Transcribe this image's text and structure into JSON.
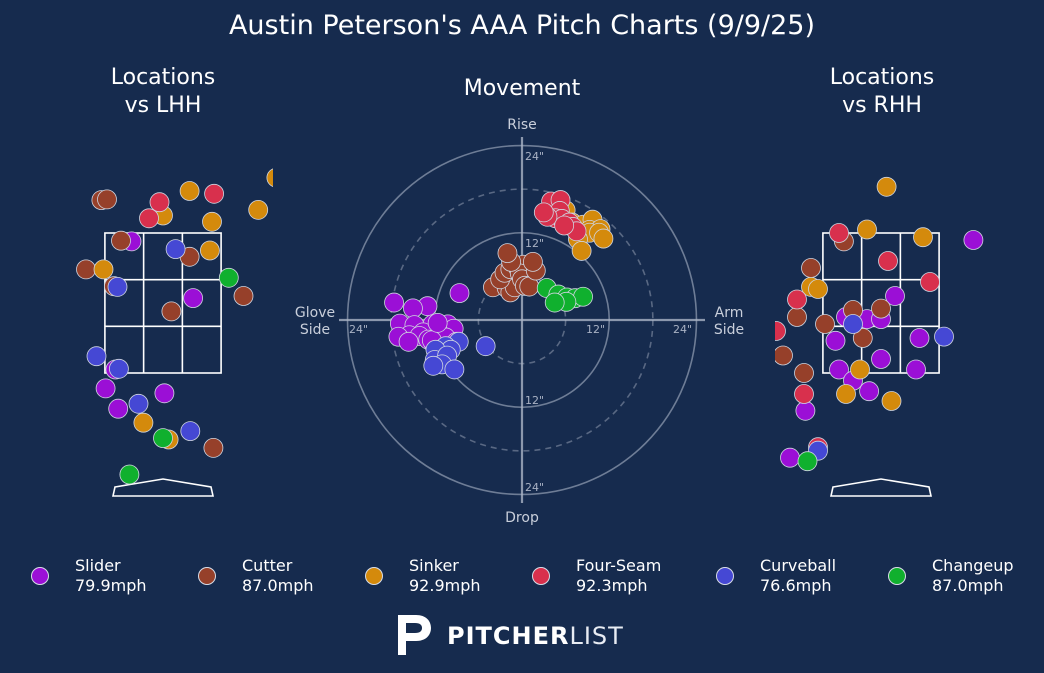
{
  "title": "Austin Peterson's AAA Pitch Charts (9/9/25)",
  "panels": {
    "lhh": {
      "line1": "Locations",
      "line2": "vs LHH"
    },
    "movement": {
      "title": "Movement"
    },
    "rhh": {
      "line1": "Locations",
      "line2": "vs RHH"
    }
  },
  "movement_axis_labels": {
    "top": "Rise",
    "bottom": "Drop",
    "left_line1": "Glove",
    "left_line2": "Side",
    "right_line1": "Arm",
    "right_line2": "Side"
  },
  "movement_ring_labels": {
    "top_24": "24\"",
    "top_12": "12\"",
    "bottom_12": "12\"",
    "bottom_24": "24\"",
    "left_24": "24\"",
    "right_12": "12\"",
    "right_24": "24\""
  },
  "colors": {
    "background": "#162b4e",
    "Slider": "#9b0fd6",
    "Cutter": "#96402a",
    "Sinker": "#d48a0c",
    "Four-Seam": "#d8304d",
    "Curveball": "#4548d4",
    "Changeup": "#10b02e"
  },
  "legend": [
    {
      "name": "Slider",
      "speed": "79.9mph"
    },
    {
      "name": "Cutter",
      "speed": "87.0mph"
    },
    {
      "name": "Sinker",
      "speed": "92.9mph"
    },
    {
      "name": "Four-Seam",
      "speed": "92.3mph"
    },
    {
      "name": "Curveball",
      "speed": "76.6mph"
    },
    {
      "name": "Changeup",
      "speed": "87.0mph"
    }
  ],
  "logo": {
    "bold": "PITCHER",
    "light": "LIST"
  },
  "chart_data": [
    {
      "type": "scatter",
      "title": "Locations vs LHH",
      "x_unit": "ft from plate center",
      "y_unit": "ft above ground",
      "series": [
        {
          "name": "Slider",
          "points": [
            [
              -0.45,
              3.38
            ],
            [
              0.43,
              2.57
            ],
            [
              -0.82,
              1.28
            ],
            [
              -0.68,
              1.55
            ],
            [
              0.02,
              1.21
            ],
            [
              -0.64,
              0.99
            ]
          ]
        },
        {
          "name": "Cutter",
          "points": [
            [
              -0.88,
              3.97
            ],
            [
              -0.8,
              3.98
            ],
            [
              -0.6,
              3.39
            ],
            [
              -1.1,
              2.98
            ],
            [
              -0.7,
              2.74
            ],
            [
              0.38,
              3.16
            ],
            [
              0.12,
              2.38
            ],
            [
              1.15,
              2.6
            ],
            [
              0.72,
              0.43
            ]
          ]
        },
        {
          "name": "Sinker",
          "points": [
            [
              0.38,
              4.1
            ],
            [
              0.0,
              3.75
            ],
            [
              0.7,
              3.66
            ],
            [
              0.67,
              3.25
            ],
            [
              -0.85,
              2.98
            ],
            [
              1.36,
              3.83
            ],
            [
              1.62,
              4.29
            ],
            [
              -0.28,
              0.79
            ],
            [
              0.08,
              0.55
            ]
          ]
        },
        {
          "name": "Four-Seam",
          "points": [
            [
              -0.05,
              3.94
            ],
            [
              0.73,
              4.06
            ],
            [
              -0.2,
              3.71
            ]
          ]
        },
        {
          "name": "Curveball",
          "points": [
            [
              -0.65,
              2.73
            ],
            [
              0.18,
              3.27
            ],
            [
              -0.95,
              1.74
            ],
            [
              -0.63,
              1.56
            ],
            [
              -0.35,
              1.06
            ],
            [
              0.39,
              0.67
            ],
            [
              -1.8,
              -1.16
            ]
          ]
        },
        {
          "name": "Changeup",
          "points": [
            [
              0.94,
              2.86
            ],
            [
              0.0,
              0.57
            ],
            [
              -0.48,
              0.05
            ],
            [
              0.75,
              -1.39
            ]
          ]
        }
      ]
    },
    {
      "type": "scatter",
      "title": "Movement",
      "x_unit": "inches",
      "y_unit": "inches",
      "x_axis": "Glove Side (-) / Arm Side (+)",
      "y_axis": "Drop (-) / Rise (+)",
      "rings": [
        12,
        24
      ],
      "series": [
        {
          "name": "Slider",
          "points": [
            [
              -8.6,
              3.7
            ],
            [
              -13.0,
              1.9
            ],
            [
              -15.0,
              1.6
            ],
            [
              -17.6,
              2.4
            ],
            [
              -16.8,
              -0.5
            ],
            [
              -14.8,
              -0.7
            ],
            [
              -12.3,
              -0.6
            ],
            [
              -10.8,
              -1.0
            ],
            [
              -10.2,
              -0.6
            ],
            [
              -9.4,
              -1.2
            ],
            [
              -11.6,
              -1.5
            ],
            [
              -13.6,
              -1.7
            ],
            [
              -15.5,
              -2.1
            ],
            [
              -17.0,
              -2.3
            ],
            [
              -14.1,
              -2.2
            ],
            [
              -12.9,
              -2.7
            ],
            [
              -10.5,
              -2.4
            ],
            [
              -12.1,
              -3.4
            ],
            [
              -12.4,
              -2.8
            ],
            [
              -15.6,
              -3.0
            ],
            [
              -11.6,
              -0.4
            ],
            [
              -9.0,
              -3.0
            ]
          ]
        },
        {
          "name": "Cutter",
          "points": [
            [
              -4.0,
              4.5
            ],
            [
              -2.1,
              4.4
            ],
            [
              -1.6,
              3.8
            ],
            [
              -1.0,
              4.5
            ],
            [
              -3.0,
              5.6
            ],
            [
              -2.4,
              6.5
            ],
            [
              -1.6,
              7.0
            ],
            [
              -0.5,
              7.1
            ],
            [
              0.2,
              7.6
            ],
            [
              -0.3,
              6.4
            ],
            [
              0.0,
              5.6
            ],
            [
              0.4,
              4.7
            ],
            [
              1.0,
              4.6
            ],
            [
              1.9,
              6.8
            ],
            [
              1.5,
              8.0
            ],
            [
              -1.5,
              8.0
            ],
            [
              -2.0,
              9.2
            ]
          ]
        },
        {
          "name": "Sinker",
          "points": [
            [
              6.0,
              15.1
            ],
            [
              6.9,
              13.4
            ],
            [
              8.4,
              13.1
            ],
            [
              9.7,
              13.8
            ],
            [
              9.3,
              12.4
            ],
            [
              10.8,
              12.5
            ],
            [
              9.3,
              12.0
            ],
            [
              10.6,
              12.0
            ],
            [
              11.2,
              11.2
            ],
            [
              7.7,
              11.1
            ],
            [
              8.2,
              9.5
            ]
          ]
        },
        {
          "name": "Four-Seam",
          "points": [
            [
              4.0,
              16.3
            ],
            [
              5.3,
              16.5
            ],
            [
              5.2,
              15.0
            ],
            [
              4.6,
              14.0
            ],
            [
              5.5,
              13.9
            ],
            [
              6.5,
              13.4
            ],
            [
              7.0,
              12.8
            ],
            [
              7.5,
              12.2
            ],
            [
              5.8,
              13.0
            ],
            [
              3.5,
              14.2
            ],
            [
              3.0,
              14.8
            ]
          ]
        },
        {
          "name": "Curveball",
          "points": [
            [
              -5.0,
              -3.6
            ],
            [
              -8.7,
              -3.0
            ],
            [
              -10.5,
              -3.6
            ],
            [
              -9.8,
              -4.1
            ],
            [
              -11.9,
              -4.1
            ],
            [
              -12.0,
              -5.5
            ],
            [
              -10.3,
              -4.9
            ],
            [
              -11.0,
              -6.1
            ],
            [
              -12.2,
              -6.3
            ],
            [
              -9.3,
              -6.8
            ]
          ]
        },
        {
          "name": "Changeup",
          "points": [
            [
              3.4,
              4.4
            ],
            [
              5.0,
              3.5
            ],
            [
              6.2,
              3.1
            ],
            [
              7.3,
              3.0
            ],
            [
              8.4,
              3.2
            ],
            [
              6.1,
              2.5
            ],
            [
              4.5,
              2.4
            ]
          ]
        }
      ]
    },
    {
      "type": "scatter",
      "title": "Locations vs RHH",
      "x_unit": "ft from plate center",
      "y_unit": "ft above ground",
      "series": [
        {
          "name": "Slider",
          "points": [
            [
              1.32,
              3.4
            ],
            [
              2.0,
              2.8
            ],
            [
              0.2,
              2.6
            ],
            [
              -0.5,
              2.3
            ],
            [
              -0.2,
              2.27
            ],
            [
              0.0,
              2.27
            ],
            [
              0.55,
              2.0
            ],
            [
              -0.65,
              1.96
            ],
            [
              0.0,
              1.7
            ],
            [
              0.5,
              1.55
            ],
            [
              -0.6,
              1.55
            ],
            [
              -0.4,
              1.39
            ],
            [
              -0.17,
              1.24
            ],
            [
              -1.08,
              0.96
            ],
            [
              -1.3,
              0.29
            ]
          ]
        },
        {
          "name": "Cutter",
          "points": [
            [
              -0.53,
              3.38
            ],
            [
              -1.0,
              3.0
            ],
            [
              -0.4,
              2.4
            ],
            [
              0.0,
              2.42
            ],
            [
              -0.26,
              2.0
            ],
            [
              -1.2,
              2.3
            ],
            [
              -0.8,
              2.2
            ],
            [
              -1.1,
              1.5
            ],
            [
              -1.4,
              1.75
            ]
          ]
        },
        {
          "name": "Sinker",
          "points": [
            [
              0.08,
              4.16
            ],
            [
              -0.2,
              3.55
            ],
            [
              0.6,
              3.44
            ],
            [
              -1.0,
              2.73
            ],
            [
              -0.9,
              2.7
            ],
            [
              -0.3,
              1.55
            ],
            [
              -0.5,
              1.2
            ],
            [
              0.15,
              1.1
            ],
            [
              -2.7,
              0.75
            ]
          ]
        },
        {
          "name": "Four-Seam",
          "points": [
            [
              -2.4,
              4.98
            ],
            [
              0.3,
              5.28
            ],
            [
              0.1,
              3.1
            ],
            [
              0.7,
              2.8
            ],
            [
              0.7,
              4.98
            ],
            [
              -0.6,
              3.5
            ],
            [
              -1.5,
              2.1
            ],
            [
              -1.2,
              2.55
            ],
            [
              -1.1,
              1.2
            ],
            [
              -0.9,
              0.44
            ]
          ]
        },
        {
          "name": "Curveball",
          "points": [
            [
              0.9,
              2.02
            ],
            [
              -0.4,
              2.2
            ],
            [
              -0.9,
              0.39
            ]
          ]
        },
        {
          "name": "Changeup",
          "points": [
            [
              0.73,
              5.92
            ],
            [
              -1.05,
              0.24
            ]
          ]
        }
      ]
    }
  ]
}
